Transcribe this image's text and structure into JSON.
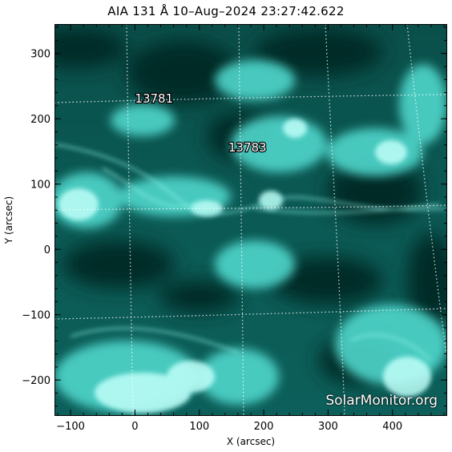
{
  "title": "AIA 131 Å 10–Aug–2024 23:27:42.622",
  "x_axis": {
    "label": "X (arcsec)",
    "ticks": [
      "−100",
      "0",
      "100",
      "200",
      "300",
      "400"
    ],
    "values": [
      -100,
      0,
      100,
      200,
      300,
      400
    ],
    "range": [
      -125,
      485
    ]
  },
  "y_axis": {
    "label": "Y (arcsec)",
    "ticks": [
      "300",
      "200",
      "100",
      "0",
      "−100",
      "−200"
    ],
    "values": [
      300,
      200,
      100,
      0,
      -100,
      -200
    ],
    "range": [
      -255,
      345
    ]
  },
  "regions": [
    {
      "label": "13781",
      "x": 0,
      "y": 225
    },
    {
      "label": "13783",
      "x": 145,
      "y": 150
    }
  ],
  "watermark": "SolarMonitor.org",
  "colors": {
    "palette_dark": "#002a26",
    "palette_mid": "#0d8f86",
    "palette_bright": "#9ffff6",
    "grid": "#ffffff"
  }
}
